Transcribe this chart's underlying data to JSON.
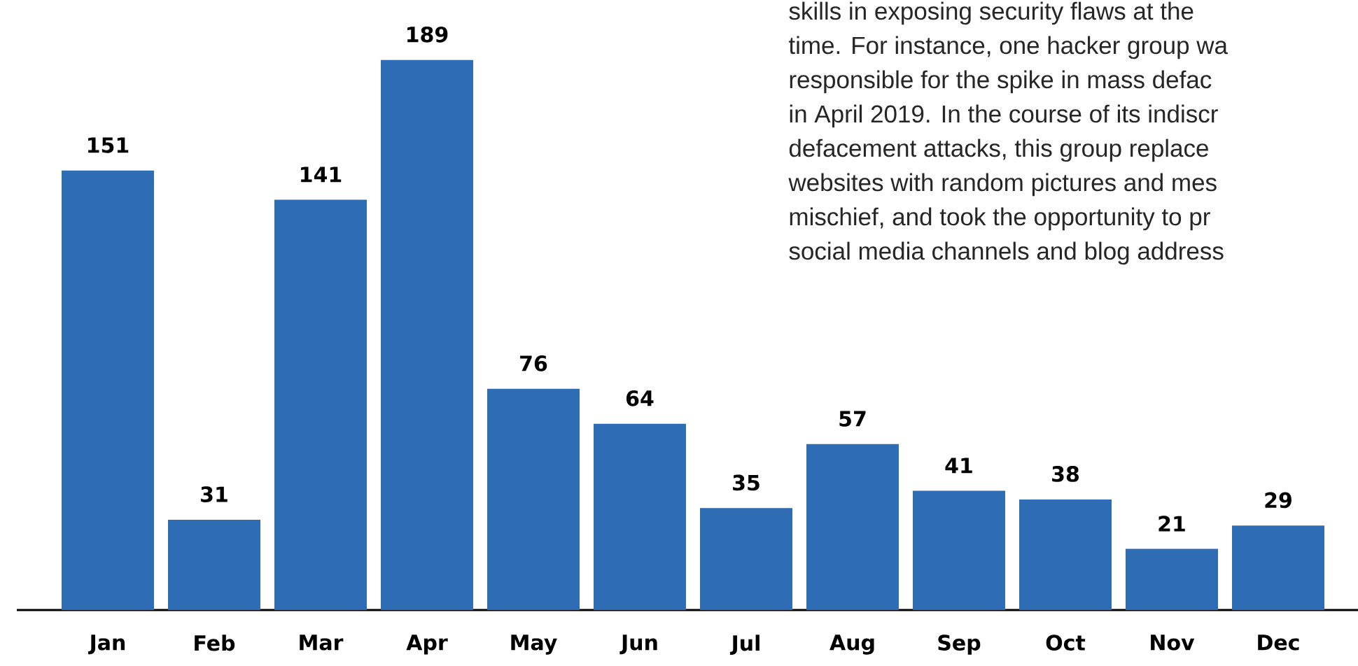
{
  "chart_data": {
    "type": "bar",
    "categories": [
      "Jan",
      "Feb",
      "Mar",
      "Apr",
      "May",
      "Jun",
      "Jul",
      "Aug",
      "Sep",
      "Oct",
      "Nov",
      "Dec"
    ],
    "values": [
      151,
      31,
      141,
      189,
      76,
      64,
      35,
      57,
      41,
      38,
      21,
      29
    ],
    "color": "#2e6db4",
    "data_labels": true,
    "annotations": [
      "skills in exposing security flaws at the",
      "time. For instance, one hacker group wa",
      "responsible for the spike in  mass defac",
      "in April 2019. In the course of its indiscr",
      "defacement attacks, this group replace",
      "websites with random pictures and mes",
      "mischief, and took the opportunity to pr",
      "social media channels and blog address"
    ]
  }
}
